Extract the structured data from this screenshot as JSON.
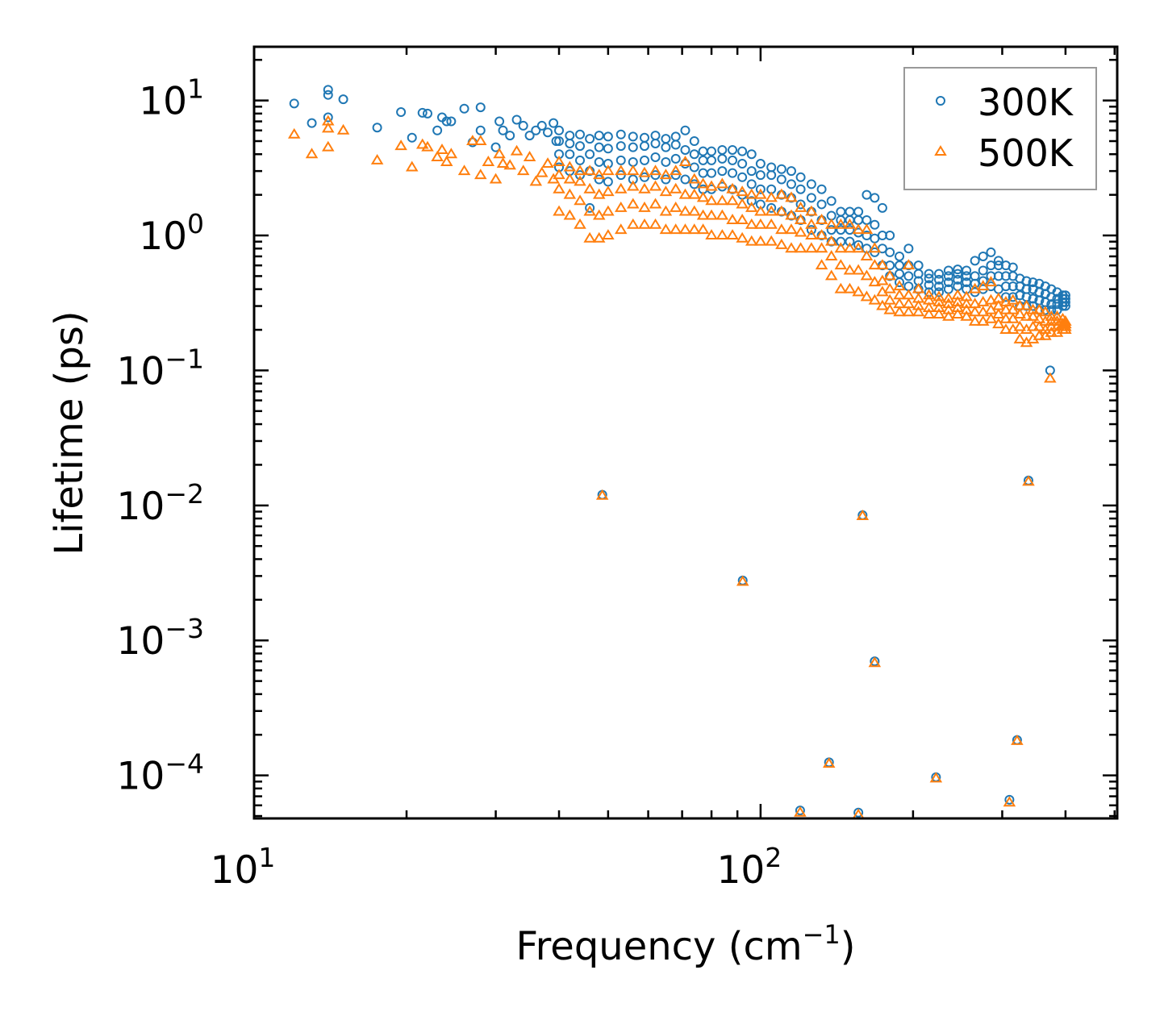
{
  "chart_data": {
    "type": "scatter",
    "xscale": "log",
    "yscale": "log",
    "xlim": [
      10,
      506
    ],
    "ylim": [
      4.8e-05,
      25
    ],
    "xlabel": {
      "text": "Frequency (cm",
      "sup": "−1",
      "suffix": ")"
    },
    "ylabel": "Lifetime (ps)",
    "xticks": [
      {
        "value": 10,
        "base": "10",
        "exp": "1"
      },
      {
        "value": 100,
        "base": "10",
        "exp": "2"
      }
    ],
    "yticks": [
      {
        "value": 10,
        "base": "10",
        "exp": "1"
      },
      {
        "value": 1,
        "base": "10",
        "exp": "0"
      },
      {
        "value": 0.1,
        "base": "10",
        "exp": "−1"
      },
      {
        "value": 0.01,
        "base": "10",
        "exp": "−2"
      },
      {
        "value": 0.001,
        "base": "10",
        "exp": "−3"
      },
      {
        "value": 0.0001,
        "base": "10",
        "exp": "−4"
      }
    ],
    "legend": {
      "placement": "top-right"
    },
    "series": [
      {
        "name": "300K",
        "marker": "circle",
        "color": "#1f77b4",
        "points": [
          [
            12,
            9.5
          ],
          [
            13,
            6.8
          ],
          [
            14,
            12
          ],
          [
            14,
            11
          ],
          [
            14,
            7.5
          ],
          [
            15,
            10.2
          ],
          [
            17.5,
            6.3
          ],
          [
            19.5,
            8.2
          ],
          [
            20.5,
            5.3
          ],
          [
            21.5,
            8.1
          ],
          [
            22,
            8
          ],
          [
            23,
            6
          ],
          [
            23.5,
            7.5
          ],
          [
            24,
            7
          ],
          [
            24.5,
            7
          ],
          [
            26,
            8.7
          ],
          [
            27,
            4.9
          ],
          [
            28,
            8.9
          ],
          [
            28,
            6
          ],
          [
            30,
            4.5
          ],
          [
            30.5,
            7
          ],
          [
            31,
            6
          ],
          [
            32,
            5.5
          ],
          [
            33,
            7.2
          ],
          [
            34,
            6.5
          ],
          [
            35,
            5.5
          ],
          [
            36,
            6
          ],
          [
            37,
            6.5
          ],
          [
            38,
            5.8
          ],
          [
            39,
            6.8
          ],
          [
            39.5,
            5
          ],
          [
            48.7,
            0.012
          ],
          [
            92.2,
            0.00278
          ],
          [
            159,
            0.00848
          ],
          [
            168,
            0.0007
          ],
          [
            136.5,
            0.000125
          ],
          [
            119.7,
            5.5e-05
          ],
          [
            156,
            5.3e-05
          ],
          [
            222,
            9.7e-05
          ],
          [
            310,
            6.6e-05
          ],
          [
            321,
            0.000183
          ],
          [
            338,
            0.0153
          ],
          [
            373,
            0.1
          ]
        ],
        "band": [
          [
            40,
            3.2,
            4,
            5,
            6
          ],
          [
            42,
            3,
            4,
            4.8,
            5.5
          ],
          [
            44,
            2.8,
            3.6,
            4.6,
            5.6
          ],
          [
            46,
            1.6,
            3,
            4,
            5.2
          ],
          [
            48,
            2.6,
            3.5,
            4.5,
            5.5
          ],
          [
            50,
            2.5,
            3.4,
            4.4,
            5.4
          ],
          [
            53,
            2.8,
            3.6,
            4.6,
            5.6
          ],
          [
            56,
            2.6,
            3.5,
            4.5,
            5.4
          ],
          [
            59,
            2.7,
            3.6,
            4.6,
            5.3
          ],
          [
            62,
            2.8,
            3.8,
            4.8,
            5.5
          ],
          [
            65,
            2.6,
            3.5,
            4.5,
            5.2
          ],
          [
            68,
            2.8,
            3.7,
            4.7,
            5.4
          ],
          [
            71,
            2.6,
            3.4,
            4.3,
            6
          ],
          [
            74,
            2.4,
            3.2,
            4,
            5
          ],
          [
            77,
            2.2,
            2.9,
            3.6,
            4.2
          ],
          [
            80,
            2.2,
            2.9,
            3.6,
            4.2
          ],
          [
            84,
            2.3,
            3,
            3.7,
            4.3
          ],
          [
            88,
            2.2,
            2.9,
            3.6,
            4.3
          ],
          [
            92,
            2,
            2.7,
            3.4,
            4.2
          ],
          [
            96,
            1.8,
            2.4,
            3,
            4
          ],
          [
            100,
            1.7,
            2.2,
            2.8,
            3.4
          ],
          [
            105,
            1.6,
            2.2,
            2.8,
            3.2
          ],
          [
            110,
            1.5,
            2,
            2.6,
            3.1
          ],
          [
            115,
            1.4,
            1.9,
            2.4,
            3
          ],
          [
            120,
            1.3,
            1.7,
            2.2,
            2.7
          ],
          [
            126,
            1.1,
            1.5,
            1.9,
            2.4
          ],
          [
            132,
            1,
            1.3,
            1.7,
            2.2
          ],
          [
            138,
            0.9,
            1.1,
            1.4,
            1.8
          ],
          [
            144,
            0.9,
            1.1,
            1.3,
            1.5
          ],
          [
            150,
            0.9,
            1.1,
            1.3,
            1.5
          ],
          [
            156,
            0.85,
            1.05,
            1.3,
            1.5
          ],
          [
            162,
            0.8,
            1,
            1.3,
            2
          ],
          [
            168,
            0.75,
            0.95,
            1.2,
            1.9
          ],
          [
            174,
            0.6,
            0.8,
            1,
            1.6
          ],
          [
            180,
            0.5,
            0.6,
            0.75,
            1
          ],
          [
            188,
            0.45,
            0.52,
            0.6,
            0.7
          ],
          [
            196,
            0.42,
            0.5,
            0.6,
            0.8
          ],
          [
            205,
            0.4,
            0.46,
            0.52,
            0.6
          ],
          [
            215,
            0.38,
            0.43,
            0.48,
            0.52
          ],
          [
            225,
            0.38,
            0.42,
            0.47,
            0.52
          ],
          [
            235,
            0.4,
            0.45,
            0.5,
            0.55
          ],
          [
            245,
            0.42,
            0.47,
            0.52,
            0.56
          ],
          [
            255,
            0.4,
            0.45,
            0.5,
            0.55
          ],
          [
            265,
            0.38,
            0.44,
            0.5,
            0.65
          ],
          [
            275,
            0.4,
            0.46,
            0.55,
            0.7
          ],
          [
            285,
            0.42,
            0.5,
            0.6,
            0.75
          ],
          [
            295,
            0.4,
            0.5,
            0.6,
            0.65
          ],
          [
            305,
            0.35,
            0.42,
            0.5,
            0.6
          ],
          [
            315,
            0.35,
            0.42,
            0.5,
            0.58
          ],
          [
            325,
            0.3,
            0.36,
            0.42,
            0.48
          ],
          [
            335,
            0.3,
            0.35,
            0.4,
            0.46
          ],
          [
            345,
            0.3,
            0.34,
            0.4,
            0.45
          ],
          [
            355,
            0.28,
            0.33,
            0.38,
            0.44
          ],
          [
            365,
            0.28,
            0.32,
            0.37,
            0.42
          ],
          [
            375,
            0.28,
            0.31,
            0.35,
            0.4
          ],
          [
            385,
            0.28,
            0.31,
            0.34,
            0.38
          ],
          [
            395,
            0.3,
            0.32,
            0.34,
            0.36
          ],
          [
            400,
            0.3,
            0.32,
            0.34,
            0.36
          ]
        ]
      },
      {
        "name": "500K",
        "marker": "triangle",
        "color": "#ff7f0e",
        "points": [
          [
            12,
            5.6
          ],
          [
            13,
            4
          ],
          [
            14,
            7
          ],
          [
            14,
            6.2
          ],
          [
            14,
            4.5
          ],
          [
            15,
            6
          ],
          [
            17.5,
            3.6
          ],
          [
            19.5,
            4.6
          ],
          [
            20.5,
            3.2
          ],
          [
            21.5,
            4.7
          ],
          [
            22,
            4.5
          ],
          [
            23,
            3.8
          ],
          [
            23.5,
            4.3
          ],
          [
            24,
            3.5
          ],
          [
            24.5,
            4
          ],
          [
            26,
            3
          ],
          [
            27,
            5
          ],
          [
            28,
            2.8
          ],
          [
            28,
            5
          ],
          [
            29,
            3.5
          ],
          [
            30,
            2.6
          ],
          [
            30.5,
            4
          ],
          [
            31,
            3.4
          ],
          [
            32,
            3.3
          ],
          [
            33,
            4.2
          ],
          [
            34,
            3
          ],
          [
            35,
            3.8
          ],
          [
            36,
            2.5
          ],
          [
            37,
            2.9
          ],
          [
            38,
            3.4
          ],
          [
            39,
            2.6
          ],
          [
            48.7,
            0.0118
          ],
          [
            92.2,
            0.00272
          ],
          [
            159,
            0.00835
          ],
          [
            168,
            0.00068
          ],
          [
            136.5,
            0.000122
          ],
          [
            119.7,
            5.3e-05
          ],
          [
            156,
            5.1e-05
          ],
          [
            222,
            9.5e-05
          ],
          [
            310,
            6.3e-05
          ],
          [
            321,
            0.00018
          ],
          [
            338,
            0.015
          ],
          [
            373,
            0.087
          ]
        ],
        "band": [
          [
            40,
            1.5,
            2.2,
            2.8,
            3.5
          ],
          [
            42,
            1.4,
            2,
            2.6,
            3.2
          ],
          [
            44,
            1.2,
            1.8,
            2.5,
            3
          ],
          [
            46,
            0.95,
            1.5,
            2.2,
            3
          ],
          [
            48,
            0.95,
            1.4,
            2,
            2.8
          ],
          [
            50,
            1,
            1.5,
            2.1,
            3
          ],
          [
            53,
            1.1,
            1.6,
            2.2,
            3
          ],
          [
            56,
            1.2,
            1.7,
            2.3,
            3
          ],
          [
            59,
            1.2,
            1.6,
            2.2,
            2.9
          ],
          [
            62,
            1.2,
            1.7,
            2.3,
            3
          ],
          [
            65,
            1.1,
            1.5,
            2.1,
            2.8
          ],
          [
            68,
            1.1,
            1.6,
            2.2,
            3
          ],
          [
            71,
            1.1,
            1.5,
            2,
            3.5
          ],
          [
            74,
            1.1,
            1.5,
            2,
            2.6
          ],
          [
            77,
            1.1,
            1.4,
            1.9,
            2.4
          ],
          [
            80,
            1,
            1.4,
            1.8,
            2.3
          ],
          [
            84,
            1,
            1.4,
            1.8,
            2.4
          ],
          [
            88,
            1,
            1.3,
            1.8,
            2.2
          ],
          [
            92,
            0.95,
            1.3,
            1.7,
            2.1
          ],
          [
            96,
            0.9,
            1.2,
            1.6,
            2
          ],
          [
            100,
            0.9,
            1.2,
            1.5,
            2
          ],
          [
            105,
            0.9,
            1.2,
            1.5,
            1.9
          ],
          [
            110,
            0.85,
            1.1,
            1.5,
            2
          ],
          [
            115,
            0.8,
            1.1,
            1.4,
            1.9
          ],
          [
            120,
            0.8,
            1.05,
            1.3,
            1.6
          ],
          [
            126,
            0.8,
            1,
            1.2,
            1.5
          ],
          [
            132,
            0.6,
            0.8,
            1,
            1.3
          ],
          [
            138,
            0.5,
            0.7,
            0.9,
            1.2
          ],
          [
            144,
            0.4,
            0.6,
            0.8,
            1.2
          ],
          [
            150,
            0.4,
            0.55,
            0.8,
            1.2
          ],
          [
            156,
            0.38,
            0.55,
            0.8,
            1.1
          ],
          [
            162,
            0.35,
            0.5,
            0.7,
            1.1
          ],
          [
            168,
            0.33,
            0.45,
            0.6,
            0.8
          ],
          [
            174,
            0.3,
            0.38,
            0.46,
            0.6
          ],
          [
            180,
            0.28,
            0.33,
            0.4,
            0.5
          ],
          [
            188,
            0.27,
            0.31,
            0.36,
            0.42
          ],
          [
            196,
            0.27,
            0.31,
            0.36,
            0.6
          ],
          [
            205,
            0.27,
            0.3,
            0.34,
            0.4
          ],
          [
            215,
            0.26,
            0.29,
            0.33,
            0.36
          ],
          [
            225,
            0.26,
            0.29,
            0.32,
            0.35
          ],
          [
            235,
            0.25,
            0.28,
            0.31,
            0.34
          ],
          [
            245,
            0.26,
            0.29,
            0.32,
            0.36
          ],
          [
            255,
            0.25,
            0.28,
            0.31,
            0.35
          ],
          [
            265,
            0.23,
            0.27,
            0.31,
            0.4
          ],
          [
            275,
            0.23,
            0.27,
            0.32,
            0.42
          ],
          [
            285,
            0.24,
            0.28,
            0.33,
            0.45
          ],
          [
            295,
            0.22,
            0.26,
            0.3,
            0.34
          ],
          [
            305,
            0.2,
            0.24,
            0.28,
            0.32
          ],
          [
            315,
            0.2,
            0.24,
            0.28,
            0.33
          ],
          [
            325,
            0.17,
            0.21,
            0.26,
            0.3
          ],
          [
            335,
            0.16,
            0.2,
            0.25,
            0.3
          ],
          [
            345,
            0.17,
            0.21,
            0.25,
            0.28
          ],
          [
            355,
            0.18,
            0.21,
            0.24,
            0.28
          ],
          [
            365,
            0.18,
            0.2,
            0.23,
            0.27
          ],
          [
            375,
            0.19,
            0.21,
            0.23,
            0.25
          ],
          [
            385,
            0.19,
            0.21,
            0.23,
            0.25
          ],
          [
            395,
            0.2,
            0.21,
            0.22,
            0.24
          ],
          [
            400,
            0.2,
            0.21,
            0.22,
            0.23
          ]
        ]
      }
    ]
  }
}
